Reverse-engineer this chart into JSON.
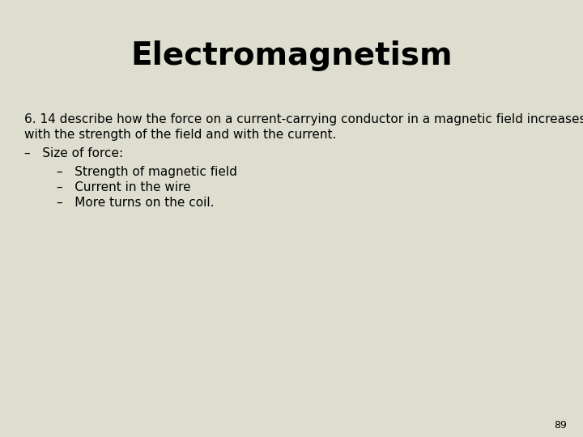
{
  "title": "Electromagnetism",
  "background_color": "#deded0",
  "title_fontsize": 28,
  "title_font": "sans-serif",
  "title_bold": true,
  "body_fontsize": 11,
  "body_font": "sans-serif",
  "page_number": "89",
  "line1": "6. 14 describe how the force on a current-carrying conductor in a magnetic field increases",
  "line2": "with the strength of the field and with the current.",
  "bullet1": "–   Size of force:",
  "sub1": "–   Strength of magnetic field",
  "sub2": "–   Current in the wire",
  "sub3": "–   More turns on the coil."
}
